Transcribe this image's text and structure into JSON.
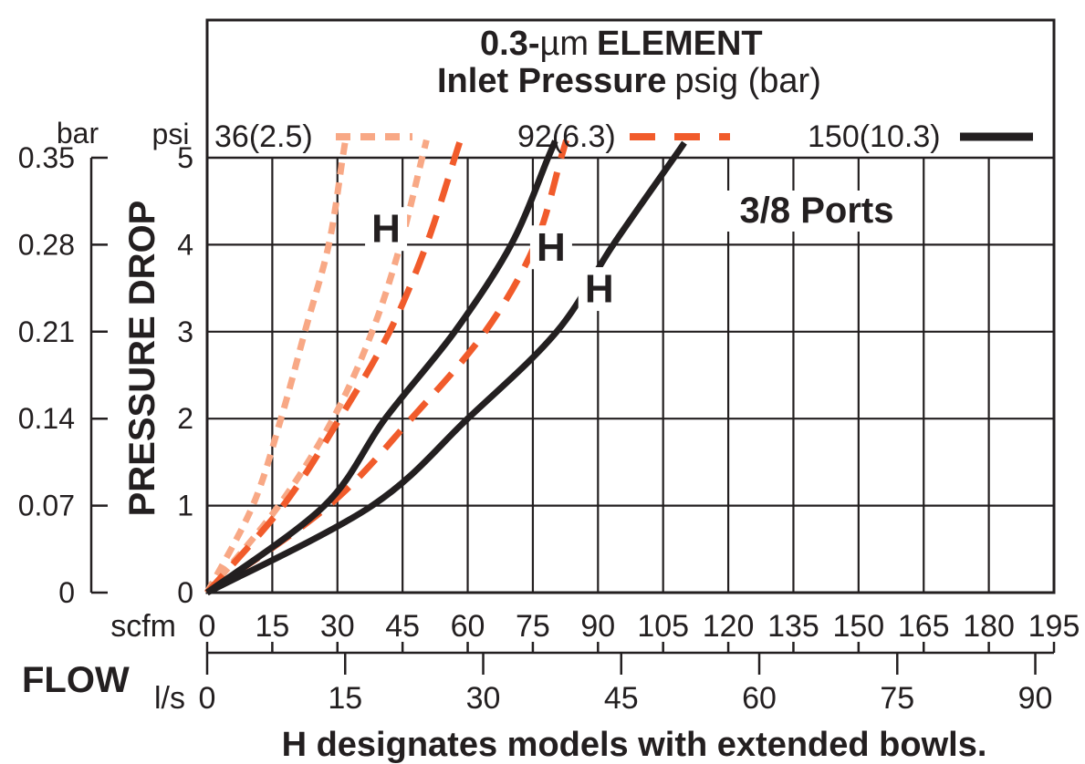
{
  "title": {
    "line1_bold": "0.3-",
    "line1_unit": "µm",
    "line1_rest": "ELEMENT",
    "line2_bold": "Inlet Pressure",
    "line2_rest": "psig (bar)"
  },
  "legend": {
    "items": [
      {
        "label": "36(2.5)",
        "style": "dotted",
        "color": "#F8A885"
      },
      {
        "label": "92(6.3)",
        "style": "dashed",
        "color": "#F15B2B"
      },
      {
        "label": "150(10.3)",
        "style": "solid",
        "color": "#231F20"
      }
    ]
  },
  "axes": {
    "pressure_unit_left": "bar",
    "pressure_unit_right": "psi",
    "ylabel": "PRESSURE DROP",
    "bar_ticks": [
      "0.35",
      "0.28",
      "0.21",
      "0.14",
      "0.07",
      "0"
    ],
    "psi_ticks": [
      "5",
      "4",
      "3",
      "2",
      "1",
      "0"
    ],
    "flow_label": "FLOW",
    "scfm_unit": "scfm",
    "scfm_ticks": [
      "0",
      "15",
      "30",
      "45",
      "60",
      "75",
      "90",
      "105",
      "120",
      "135",
      "150",
      "165",
      "180",
      "195"
    ],
    "ls_unit": "l/s",
    "ls_ticks": [
      "0",
      "15",
      "30",
      "45",
      "60",
      "75",
      "90"
    ]
  },
  "annotation_ports": "3/8 Ports",
  "caption": "H designates models with extended bowls.",
  "h_markers": [
    {
      "label": "H",
      "scfm": 41.2,
      "psi": 4.18
    },
    {
      "label": "H",
      "scfm": 79.2,
      "psi": 3.97
    },
    {
      "label": "H",
      "scfm": 90.3,
      "psi": 3.49
    }
  ],
  "chart_data": {
    "type": "line",
    "title": "0.3-µm ELEMENT",
    "subtitle": "Inlet Pressure psig (bar)",
    "xlabel": "FLOW",
    "ylabel": "PRESSURE DROP",
    "x_axis": {
      "unit_top": "scfm",
      "range": [
        0,
        195
      ],
      "tick_step": 15,
      "unit_bottom": "l/s",
      "range_ls": [
        0,
        90
      ],
      "tick_step_ls": 15
    },
    "y_axis": {
      "unit_right": "psi",
      "range": [
        0,
        5
      ],
      "unit_left": "bar",
      "range_bar": [
        0,
        0.35
      ]
    },
    "grid": true,
    "legend_position": "top",
    "series": [
      {
        "name": "36(2.5) psig standard",
        "color": "#F8A885",
        "dash": "dotted",
        "points_scfm_psi": [
          [
            0,
            0
          ],
          [
            10.5,
            1
          ],
          [
            17,
            2
          ],
          [
            22.5,
            3
          ],
          [
            28,
            4
          ],
          [
            31.2,
            5
          ]
        ]
      },
      {
        "name": "36(2.5) psig H extended bowl",
        "color": "#F8A885",
        "dash": "dotted",
        "points_scfm_psi": [
          [
            0,
            0
          ],
          [
            16.5,
            1
          ],
          [
            29,
            2
          ],
          [
            38,
            3
          ],
          [
            44.5,
            4
          ],
          [
            49.5,
            5
          ]
        ]
      },
      {
        "name": "92(6.3) psig standard",
        "color": "#F15B2B",
        "dash": "dashed",
        "points_scfm_psi": [
          [
            0,
            0
          ],
          [
            17.5,
            1
          ],
          [
            30.5,
            2
          ],
          [
            42,
            3
          ],
          [
            50.5,
            4
          ],
          [
            57,
            5
          ]
        ]
      },
      {
        "name": "92(6.3) psig H extended bowl",
        "color": "#F15B2B",
        "dash": "dashed",
        "points_scfm_psi": [
          [
            0,
            0
          ],
          [
            28,
            1
          ],
          [
            47,
            2
          ],
          [
            64,
            3
          ],
          [
            75.5,
            4
          ],
          [
            81.5,
            5
          ]
        ]
      },
      {
        "name": "150(10.3) psig standard",
        "color": "#231F20",
        "dash": "solid",
        "points_scfm_psi": [
          [
            0,
            0
          ],
          [
            27,
            1
          ],
          [
            41,
            2
          ],
          [
            57,
            3
          ],
          [
            70,
            4
          ],
          [
            78.5,
            5
          ]
        ]
      },
      {
        "name": "150(10.3) psig H extended bowl",
        "color": "#231F20",
        "dash": "solid",
        "points_scfm_psi": [
          [
            0,
            0
          ],
          [
            38,
            1
          ],
          [
            60,
            2
          ],
          [
            80.5,
            3
          ],
          [
            93.5,
            4
          ],
          [
            107.5,
            5
          ]
        ]
      }
    ]
  }
}
